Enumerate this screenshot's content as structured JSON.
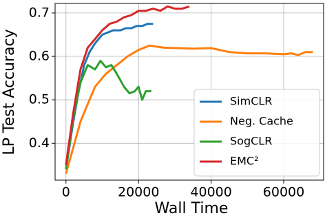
{
  "chart_data": {
    "type": "line",
    "xlabel": "Wall Time",
    "ylabel": "LP Test Accuracy",
    "xlim": [
      -3000,
      71000
    ],
    "ylim": [
      0.315,
      0.722
    ],
    "xticks": [
      0,
      20000,
      40000,
      60000
    ],
    "yticks": [
      0.4,
      0.5,
      0.6,
      0.7
    ],
    "grid": true,
    "legend_loc": "lower right",
    "series": [
      {
        "name": "SimCLR",
        "color": "#1f77b4",
        "x": [
          0,
          2000,
          3500,
          5000,
          6500,
          8000,
          10000,
          11500,
          13000,
          15000,
          16500,
          18000,
          19500,
          21000,
          22500,
          24000
        ],
        "values": [
          0.34,
          0.45,
          0.52,
          0.58,
          0.61,
          0.63,
          0.65,
          0.655,
          0.66,
          0.66,
          0.665,
          0.665,
          0.67,
          0.67,
          0.675,
          0.675
        ]
      },
      {
        "name": "Neg. Cache",
        "color": "#ff7f0e",
        "x": [
          0,
          2000,
          4000,
          6000,
          8000,
          11000,
          14000,
          17000,
          20000,
          23000,
          27000,
          31000,
          35000,
          40000,
          45000,
          50000,
          55000,
          60000,
          62000,
          64000,
          66000,
          68000
        ],
        "values": [
          0.33,
          0.39,
          0.45,
          0.49,
          0.53,
          0.56,
          0.58,
          0.6,
          0.615,
          0.625,
          0.62,
          0.619,
          0.618,
          0.619,
          0.61,
          0.607,
          0.607,
          0.605,
          0.607,
          0.603,
          0.61,
          0.61
        ]
      },
      {
        "name": "SogCLR",
        "color": "#2ca02c",
        "x": [
          0,
          2000,
          4000,
          6000,
          8000,
          9500,
          11000,
          12500,
          14000,
          16000,
          17500,
          19000,
          20000,
          21000,
          22000,
          23500
        ],
        "values": [
          0.34,
          0.46,
          0.54,
          0.58,
          0.57,
          0.59,
          0.575,
          0.58,
          0.56,
          0.53,
          0.515,
          0.52,
          0.53,
          0.5,
          0.52,
          0.52
        ]
      },
      {
        "name": "EMC²",
        "color": "#d62728",
        "x": [
          0,
          2000,
          4000,
          6000,
          8000,
          10000,
          12000,
          14000,
          16000,
          18000,
          20000,
          22000,
          24000,
          26000,
          28000,
          30000,
          32000,
          34000
        ],
        "values": [
          0.35,
          0.47,
          0.57,
          0.62,
          0.64,
          0.66,
          0.675,
          0.68,
          0.69,
          0.695,
          0.705,
          0.705,
          0.71,
          0.705,
          0.715,
          0.71,
          0.71,
          0.715
        ]
      }
    ]
  }
}
